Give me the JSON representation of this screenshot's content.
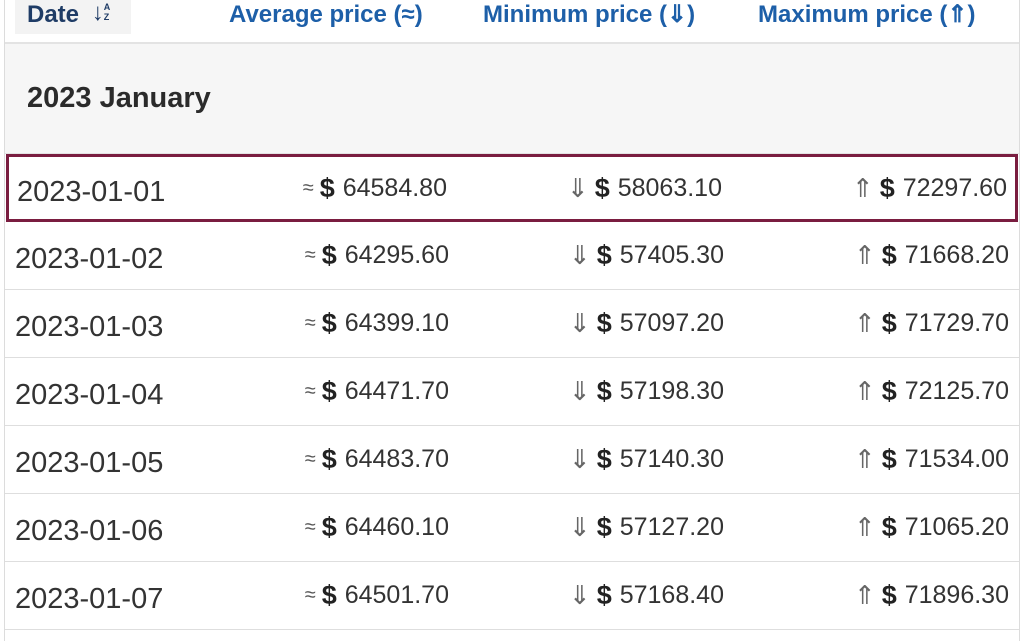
{
  "header": {
    "date_label": "Date",
    "sort_icon_letters": "A\nZ",
    "avg_label": "Average price (≈)",
    "min_label": "Minimum price (⇓)",
    "max_label": "Maximum price (⇑)"
  },
  "group_title": "2023 January",
  "symbols": {
    "approx": "≈",
    "down": "⇓",
    "up": "⇑",
    "currency": "$"
  },
  "rows": [
    {
      "date": "2023-01-01",
      "avg": "64584.80",
      "min": "58063.10",
      "max": "72297.60"
    },
    {
      "date": "2023-01-02",
      "avg": "64295.60",
      "min": "57405.30",
      "max": "71668.20"
    },
    {
      "date": "2023-01-03",
      "avg": "64399.10",
      "min": "57097.20",
      "max": "71729.70"
    },
    {
      "date": "2023-01-04",
      "avg": "64471.70",
      "min": "57198.30",
      "max": "72125.70"
    },
    {
      "date": "2023-01-05",
      "avg": "64483.70",
      "min": "57140.30",
      "max": "71534.00"
    },
    {
      "date": "2023-01-06",
      "avg": "64460.10",
      "min": "57127.20",
      "max": "71065.20"
    },
    {
      "date": "2023-01-07",
      "avg": "64501.70",
      "min": "57168.40",
      "max": "71896.30"
    }
  ],
  "colors": {
    "header_link": "#1d5fa8",
    "header_date": "#1f3c66",
    "highlight_border": "#7a1d40",
    "group_bg": "#f6f6f6"
  }
}
